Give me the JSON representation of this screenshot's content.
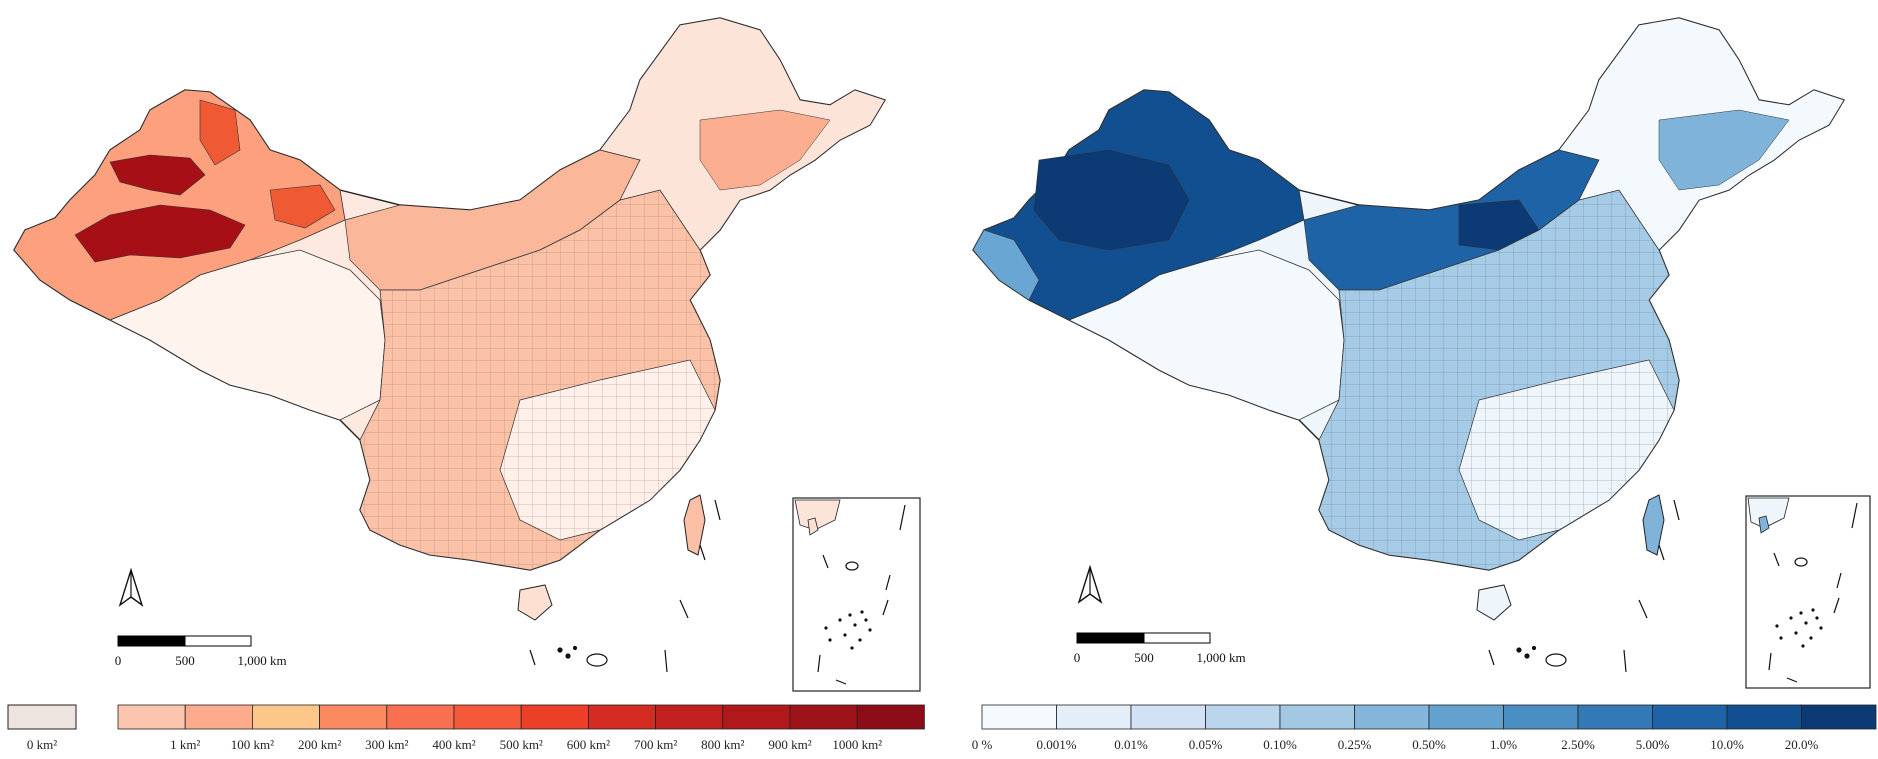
{
  "left_map": {
    "scale_bar": {
      "labels": [
        "0",
        "500",
        "1,000 km"
      ]
    },
    "legend": {
      "zero_label": "0 km²",
      "zero_color": "#ede3df",
      "labels": [
        "1 km²",
        "100 km²",
        "200 km²",
        "300 km²",
        "400 km²",
        "500 km²",
        "600 km²",
        "700 km²",
        "800 km²",
        "900 km²",
        "1000 km²"
      ],
      "colors": [
        "#fcc6ae",
        "#fcab8c",
        "#fdc78a",
        "#fb8a60",
        "#f87050",
        "#f45a3a",
        "#eb3f28",
        "#d42b22",
        "#c1201f",
        "#b0181c",
        "#9e1219",
        "#8c0d18"
      ]
    },
    "palette": {
      "light": "#fde4d8",
      "mid": "#fca07e",
      "high": "#ef5a34",
      "max": "#a50f15",
      "bg_white": "#fff3ee"
    }
  },
  "right_map": {
    "scale_bar": {
      "labels": [
        "0",
        "500",
        "1,000 km"
      ]
    },
    "legend": {
      "labels": [
        "0 %",
        "0.001%",
        "0.01%",
        "0.05%",
        "0.10%",
        "0.25%",
        "0.50%",
        "1.0%",
        "2.50%",
        "5.00%",
        "10.0%",
        "20.0%"
      ],
      "colors": [
        "#f5fafe",
        "#e3eef9",
        "#d0e2f3",
        "#bbd6ec",
        "#a2c8e4",
        "#83b6da",
        "#63a2cf",
        "#4a8fc3",
        "#3279b6",
        "#1e63a6",
        "#124f90",
        "#0b3a75"
      ]
    },
    "palette": {
      "light": "#f4f9fe",
      "mid": "#8ab9dc",
      "high": "#2a6fb2",
      "max": "#0b3a75"
    }
  }
}
